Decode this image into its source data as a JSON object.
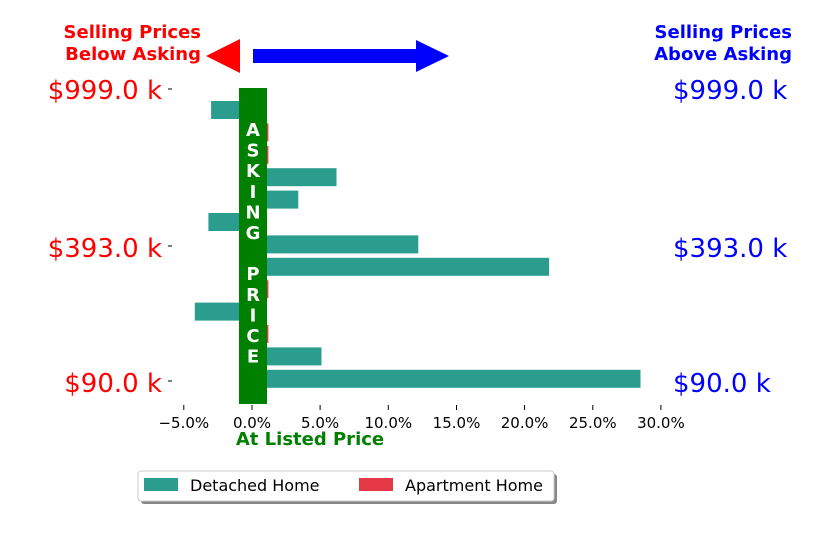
{
  "header": {
    "below_line1": "Selling Prices",
    "below_line2": "Below Asking",
    "above_line1": "Selling Prices",
    "above_line2": "Above Asking",
    "below_color": "#ff0000",
    "above_color": "#0000ff"
  },
  "price_labels": [
    "$999.0 k",
    "$393.0 k",
    "$90.0 k"
  ],
  "asking_band": {
    "text": "ASKING PRICE",
    "color": "#008000",
    "caption": "At Listed Price"
  },
  "legend": {
    "items": [
      {
        "label": "Detached Home",
        "color": "#2a9d8f"
      },
      {
        "label": "Apartment Home",
        "color": "#e63946"
      }
    ]
  },
  "chart_data": {
    "type": "bar",
    "orientation": "horizontal",
    "xlabel": "",
    "ylabel": "",
    "x_ticks": [
      "−5.0%",
      "0.0%",
      "5.0%",
      "10.0%",
      "15.0%",
      "20.0%",
      "25.0%",
      "30.0%"
    ],
    "x_tick_values": [
      -5,
      0,
      5,
      10,
      15,
      20,
      25,
      30
    ],
    "xlim": [
      -5,
      30
    ],
    "rows": 13,
    "series": [
      {
        "name": "Detached Home",
        "color": "#2a9d8f",
        "bars": [
          {
            "row": 0,
            "value": -3.0
          },
          {
            "row": 3,
            "value": 6.2
          },
          {
            "row": 4,
            "value": 3.4
          },
          {
            "row": 5,
            "value": -3.2
          },
          {
            "row": 6,
            "value": 12.2
          },
          {
            "row": 7,
            "value": 21.8
          },
          {
            "row": 9,
            "value": -4.2
          },
          {
            "row": 11,
            "value": 5.1
          },
          {
            "row": 12,
            "value": 28.5
          }
        ]
      },
      {
        "name": "Apartment Home",
        "color": "#e63946",
        "bars": [
          {
            "row": 1,
            "value": 1.2
          },
          {
            "row": 2,
            "value": 1.2
          },
          {
            "row": 8,
            "value": 1.2
          },
          {
            "row": 10,
            "value": 1.2
          }
        ]
      }
    ]
  }
}
